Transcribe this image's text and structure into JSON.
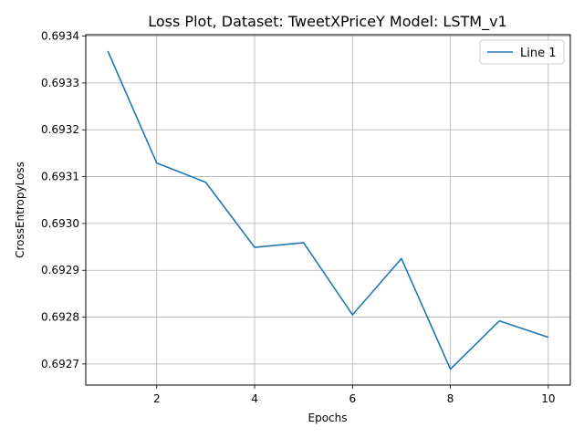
{
  "chart_data": {
    "type": "line",
    "title": "Loss Plot, Dataset: TweetXPriceY Model: LSTM_v1",
    "xlabel": "Epochs",
    "ylabel": "CrossEntropyLoss",
    "xlim": [
      0.55,
      10.45
    ],
    "ylim": [
      0.692655,
      0.693403
    ],
    "xticks": [
      2,
      4,
      6,
      8,
      10
    ],
    "xtick_labels": [
      "2",
      "4",
      "6",
      "8",
      "10"
    ],
    "yticks": [
      0.6927,
      0.6928,
      0.6929,
      0.693,
      0.6931,
      0.6932,
      0.6933,
      0.6934
    ],
    "ytick_labels": [
      "0.6927",
      "0.6928",
      "0.6929",
      "0.6930",
      "0.6931",
      "0.6932",
      "0.6933",
      "0.6934"
    ],
    "grid": true,
    "legend_position": "top-right",
    "series": [
      {
        "name": "Line 1",
        "color": "#1f77b4",
        "x": [
          1,
          2,
          3,
          4,
          5,
          6,
          7,
          8,
          9,
          10
        ],
        "y": [
          0.693368,
          0.693129,
          0.693088,
          0.692949,
          0.692959,
          0.692805,
          0.692925,
          0.692689,
          0.692792,
          0.692757
        ]
      }
    ]
  }
}
